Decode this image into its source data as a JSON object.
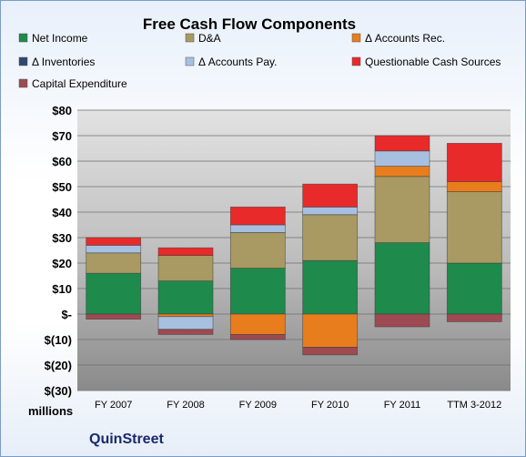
{
  "chart_data": {
    "type": "bar",
    "stacked": true,
    "title": "Free Cash Flow Components",
    "units_label": "millions",
    "company": "QuinStreet",
    "categories": [
      "FY 2007",
      "FY 2008",
      "FY 2009",
      "FY 2010",
      "FY 2011",
      "TTM 3-2012"
    ],
    "ylim": [
      -30,
      80
    ],
    "yticks": [
      {
        "value": 80,
        "label": "$80"
      },
      {
        "value": 70,
        "label": "$70"
      },
      {
        "value": 60,
        "label": "$60"
      },
      {
        "value": 50,
        "label": "$50"
      },
      {
        "value": 40,
        "label": "$40"
      },
      {
        "value": 30,
        "label": "$30"
      },
      {
        "value": 20,
        "label": "$20"
      },
      {
        "value": 10,
        "label": "$10"
      },
      {
        "value": 0,
        "label": "$-"
      },
      {
        "value": -10,
        "label": "$(10)"
      },
      {
        "value": -20,
        "label": "$(20)"
      },
      {
        "value": -30,
        "label": "$(30)"
      }
    ],
    "grid": true,
    "legend_position": "top",
    "series": [
      {
        "name": "Net Income",
        "color": "#1e8a4c",
        "values": [
          16,
          13,
          18,
          21,
          28,
          20
        ]
      },
      {
        "name": "D&A",
        "color": "#a89a62",
        "values": [
          8,
          10,
          14,
          18,
          26,
          28
        ]
      },
      {
        "name": "Δ Accounts Rec.",
        "color": "#e87d1e",
        "values": [
          0,
          -1,
          -8,
          -13,
          4,
          4
        ]
      },
      {
        "name": "Δ Inventories",
        "color": "#2c4a6e",
        "values": [
          0,
          0,
          0,
          0,
          0,
          0
        ]
      },
      {
        "name": "Δ Accounts Pay.",
        "color": "#a8c0e0",
        "values": [
          3,
          -5,
          3,
          3,
          6,
          0
        ]
      },
      {
        "name": "Questionable Cash Sources",
        "color": "#e82a2a",
        "values": [
          3,
          3,
          7,
          9,
          6,
          15
        ]
      },
      {
        "name": "Capital Expenditure",
        "color": "#9e4a52",
        "values": [
          -2,
          -2,
          -2,
          -3,
          -5,
          -3
        ]
      }
    ]
  }
}
